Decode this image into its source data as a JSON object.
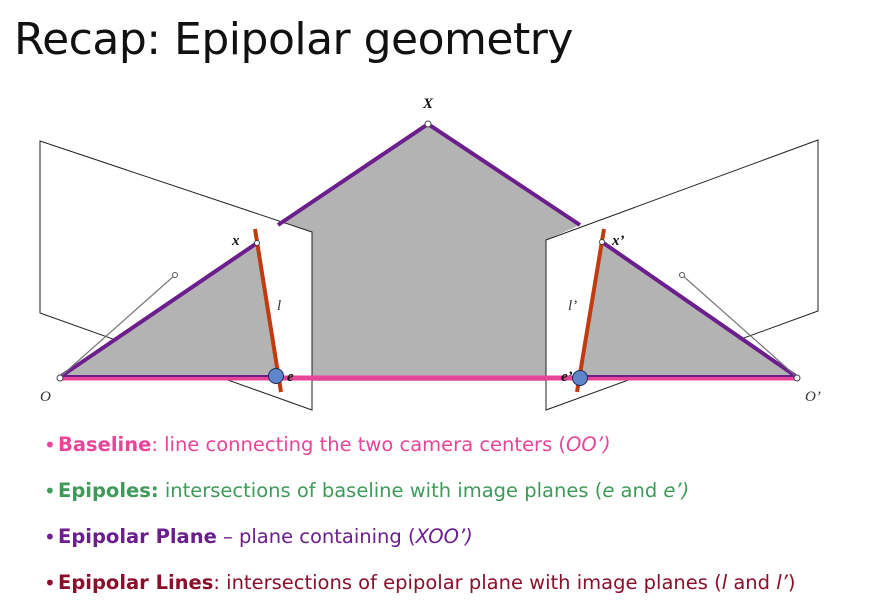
{
  "slide": {
    "title": "Recap: Epipolar geometry"
  },
  "diagram": {
    "labels": {
      "X": "X",
      "x": "x",
      "x_prime": "x’",
      "l": "l",
      "l_prime": "l’",
      "e": "e",
      "e_prime": "e’",
      "O": "O",
      "O_prime": "O’"
    },
    "colors": {
      "baseline": "#e8449a",
      "epipolar_plane_edge": "#6b1e8c",
      "epipolar_plane_fill": "#b3b3b3",
      "epipolar_line": "#c23b10",
      "epipole_fill": "#5f86c8",
      "frame": "#222222"
    }
  },
  "bullets": [
    {
      "color": "#e8449a",
      "term": "Baseline",
      "sep": ": line connecting the two camera centers (",
      "em": "OO’)",
      "tail": ""
    },
    {
      "color": "#3f9a5a",
      "term": "Epipoles:",
      "sep": " intersections of baseline with image planes (",
      "em": "e",
      "mid": " and ",
      "em2": "e’)",
      "tail": ""
    },
    {
      "color": "#6b1e8c",
      "term": "Epipolar Plane",
      "sep": " – plane containing (",
      "em": "XOO’)",
      "tail": ""
    },
    {
      "color": "#8b0f2a",
      "term": "Epipolar Lines",
      "sep": ": intersections of epipolar plane with image planes (",
      "em": "l",
      "mid": " and ",
      "em2": "l’",
      "tail": ")"
    }
  ]
}
